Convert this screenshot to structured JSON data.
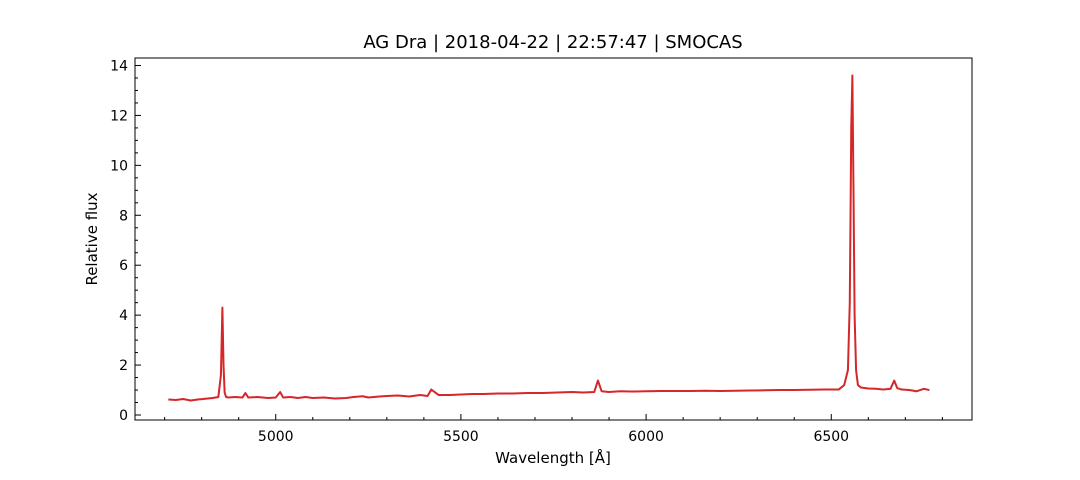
{
  "chart_data": {
    "type": "line",
    "title": "AG Dra | 2018-04-22 | 22:57:47 | SMOCAS",
    "xlabel": "Wavelength [Å]",
    "ylabel": "Relative flux",
    "xlim": [
      4620,
      6880
    ],
    "ylim": [
      -0.2,
      14.3
    ],
    "x_ticks": [
      5000,
      5500,
      6000,
      6500
    ],
    "y_ticks": [
      0,
      2,
      4,
      6,
      8,
      10,
      12,
      14
    ],
    "y_minor_step": 0.5,
    "grid": false,
    "line_color": "#d62728",
    "series": [
      {
        "x": [
          4710,
          4730,
          4750,
          4770,
          4790,
          4810,
          4830,
          4845,
          4852,
          4856,
          4859,
          4862,
          4866,
          4872,
          4890,
          4910,
          4918,
          4926,
          4950,
          4980,
          5000,
          5012,
          5020,
          5040,
          5060,
          5080,
          5100,
          5130,
          5160,
          5190,
          5210,
          5235,
          5250,
          5280,
          5300,
          5330,
          5360,
          5390,
          5410,
          5420,
          5440,
          5470,
          5500,
          5530,
          5560,
          5600,
          5640,
          5680,
          5720,
          5760,
          5800,
          5830,
          5860,
          5870,
          5880,
          5900,
          5930,
          5960,
          6000,
          6040,
          6080,
          6120,
          6160,
          6200,
          6240,
          6280,
          6320,
          6360,
          6400,
          6440,
          6480,
          6520,
          6535,
          6545,
          6550,
          6554,
          6557,
          6560,
          6563,
          6567,
          6572,
          6580,
          6600,
          6620,
          6640,
          6660,
          6670,
          6678,
          6690,
          6710,
          6730,
          6750,
          6765
        ],
        "y": [
          0.62,
          0.6,
          0.64,
          0.58,
          0.62,
          0.65,
          0.68,
          0.72,
          1.6,
          4.3,
          2.0,
          0.9,
          0.72,
          0.7,
          0.72,
          0.7,
          0.88,
          0.7,
          0.72,
          0.68,
          0.7,
          0.92,
          0.7,
          0.72,
          0.68,
          0.72,
          0.68,
          0.7,
          0.66,
          0.68,
          0.72,
          0.75,
          0.7,
          0.74,
          0.76,
          0.78,
          0.74,
          0.8,
          0.76,
          1.02,
          0.8,
          0.8,
          0.82,
          0.84,
          0.84,
          0.86,
          0.86,
          0.88,
          0.88,
          0.9,
          0.92,
          0.9,
          0.92,
          1.38,
          0.95,
          0.92,
          0.95,
          0.94,
          0.95,
          0.96,
          0.96,
          0.96,
          0.97,
          0.96,
          0.97,
          0.98,
          0.99,
          1.0,
          1.0,
          1.01,
          1.02,
          1.02,
          1.2,
          1.8,
          4.5,
          11.5,
          13.6,
          9.0,
          4.0,
          1.8,
          1.2,
          1.1,
          1.06,
          1.05,
          1.02,
          1.05,
          1.38,
          1.08,
          1.02,
          1.0,
          0.95,
          1.05,
          1.0
        ]
      }
    ]
  }
}
